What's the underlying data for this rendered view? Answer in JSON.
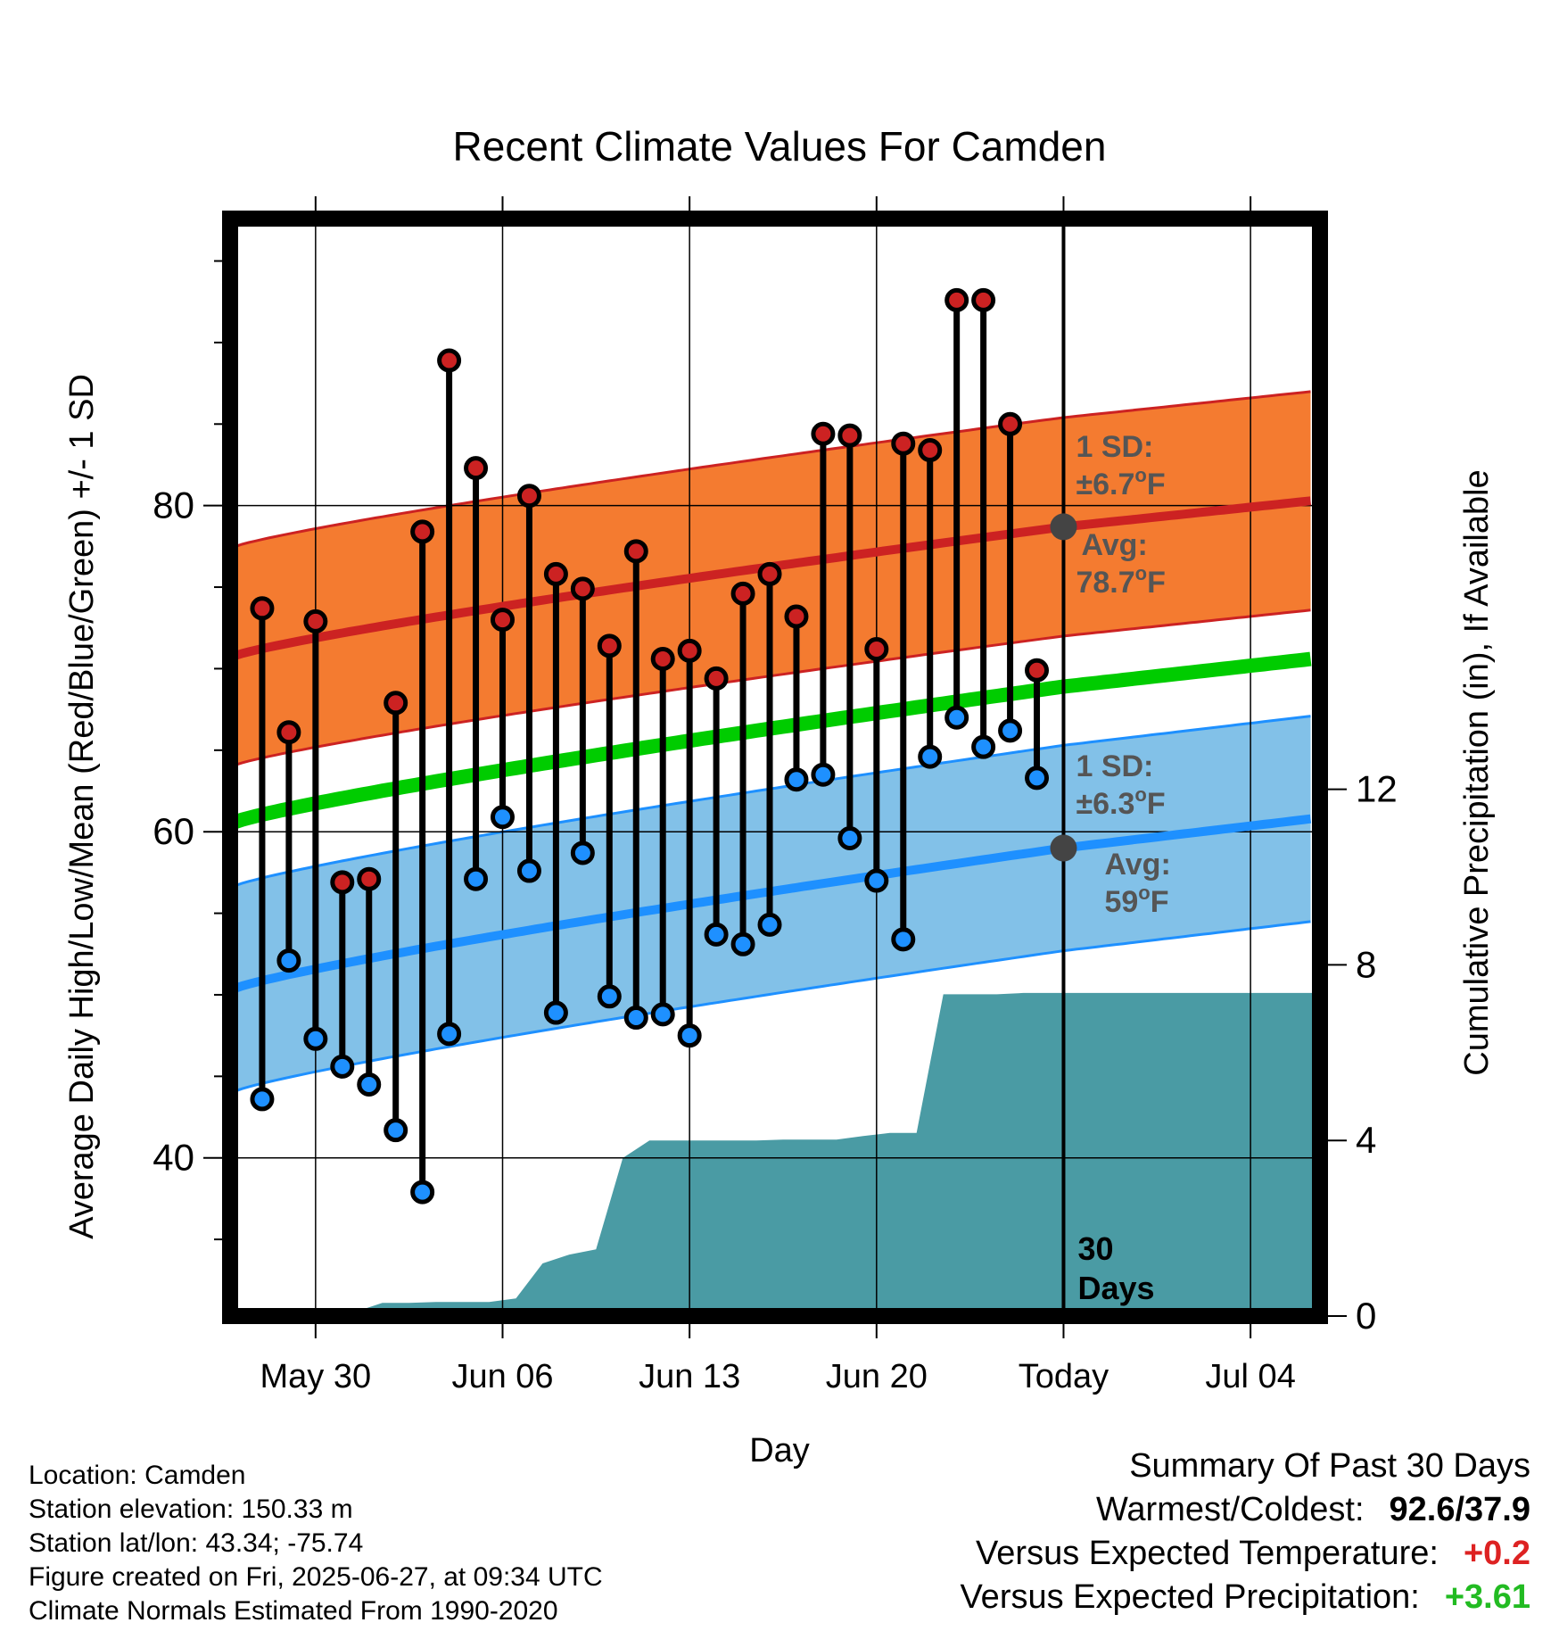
{
  "chart_data": {
    "type": "line",
    "title": "Recent Climate Values For Camden",
    "xlabel": "Day",
    "ylabel_left": "Average Daily High/Low/Mean (Red/Blue/Green) +/- 1 SD",
    "ylabel_right": "Cumulative Precipitation (in), If Available",
    "x_ticks": [
      "May 30",
      "Jun 06",
      "Jun 13",
      "Jun 20",
      "Today",
      "Jul 04"
    ],
    "y_left_ticks": [
      40,
      60,
      80
    ],
    "y_right_ticks": [
      0,
      4,
      8,
      12
    ],
    "ylim_left": [
      30.3,
      97.6
    ],
    "ylim_right": [
      0,
      25
    ],
    "xlim_days_from_today": [
      -31.2,
      9.6
    ],
    "grid": true,
    "daily_high": [
      73.7,
      66.1,
      72.9,
      56.9,
      57.1,
      67.9,
      78.4,
      88.9,
      82.3,
      73.0,
      80.6,
      75.8,
      74.9,
      71.4,
      77.2,
      70.6,
      71.1,
      69.4,
      74.6,
      75.8,
      73.2,
      84.4,
      84.3,
      71.2,
      83.8,
      83.4,
      92.6,
      92.6,
      85.0,
      69.9
    ],
    "daily_low": [
      43.6,
      52.1,
      47.3,
      45.6,
      44.5,
      41.7,
      37.9,
      47.6,
      57.1,
      60.9,
      57.6,
      48.9,
      58.7,
      49.9,
      48.6,
      48.8,
      47.5,
      53.7,
      53.1,
      54.3,
      63.2,
      63.5,
      59.6,
      57.0,
      53.4,
      64.6,
      67.0,
      65.2,
      66.2,
      63.3
    ],
    "normal_high": {
      "start": 70.8,
      "today": 78.7,
      "end": 80.3
    },
    "normal_low": {
      "start": 50.4,
      "today": 59.0,
      "end": 60.8
    },
    "normal_mean": {
      "start": 60.6,
      "today": 68.9,
      "end": 70.6
    },
    "high_sd": 6.7,
    "low_sd": 6.3,
    "cumulative_precip": [
      0.0,
      0.0,
      0.1,
      0.1,
      0.3,
      0.3,
      0.32,
      0.32,
      0.32,
      0.4,
      1.2,
      1.4,
      1.52,
      3.6,
      4.0,
      4.0,
      4.0,
      4.0,
      4.0,
      4.02,
      4.02,
      4.02,
      4.1,
      4.17,
      4.17,
      7.33,
      7.33,
      7.33,
      7.36,
      7.36,
      7.36
    ],
    "annotations": {
      "high_sd_label": "1 SD:",
      "high_sd_value": "±6.7",
      "high_avg_label": "Avg:",
      "high_avg_value": "78.7",
      "low_sd_label": "1 SD:",
      "low_sd_value": "±6.3",
      "low_avg_label": "Avg:",
      "low_avg_value": "59",
      "degree_unit": "o",
      "temp_unit": "F",
      "period_number": "30",
      "period_unit": "Days"
    },
    "colors": {
      "high": "#cc2222",
      "high_band": "#f47b30",
      "low": "#1e90ff",
      "low_band": "#82c1e8",
      "mean": "#00cc00",
      "precip": "#4a9ba4",
      "avg_marker": "#444444",
      "annotation_text": "#555555"
    }
  },
  "info": {
    "location": "Location: Camden",
    "elevation": "Station elevation: 150.33 m",
    "latlon": "Station lat/lon: 43.34; -75.74",
    "created": "Figure created on Fri, 2025-06-27, at 09:34 UTC",
    "normals": "Climate Normals Estimated From 1990-2020"
  },
  "summary": {
    "title": "Summary Of Past 30 Days",
    "warmest_label": "Warmest/Coldest:",
    "warmest_value": "92.6/37.9",
    "temp_label": "Versus Expected Temperature:",
    "temp_value": "+0.2",
    "temp_color": "#dd2222",
    "precip_label": "Versus Expected Precipitation:",
    "precip_value": "+3.61",
    "precip_color": "#22bb22"
  }
}
